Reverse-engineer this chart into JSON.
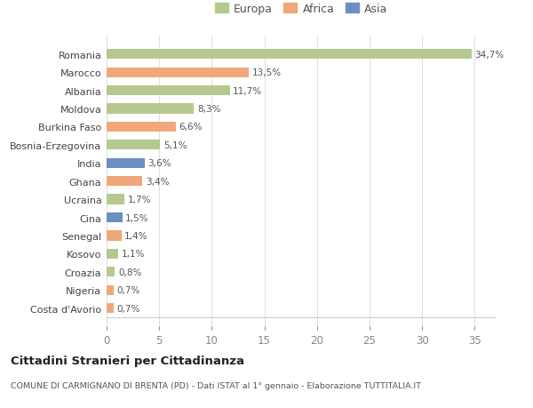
{
  "countries": [
    "Romania",
    "Marocco",
    "Albania",
    "Moldova",
    "Burkina Faso",
    "Bosnia-Erzegovina",
    "India",
    "Ghana",
    "Ucraina",
    "Cina",
    "Senegal",
    "Kosovo",
    "Croazia",
    "Nigeria",
    "Costa d'Avorio"
  ],
  "values": [
    34.7,
    13.5,
    11.7,
    8.3,
    6.6,
    5.1,
    3.6,
    3.4,
    1.7,
    1.5,
    1.4,
    1.1,
    0.8,
    0.7,
    0.7
  ],
  "labels": [
    "34,7%",
    "13,5%",
    "11,7%",
    "8,3%",
    "6,6%",
    "5,1%",
    "3,6%",
    "3,4%",
    "1,7%",
    "1,5%",
    "1,4%",
    "1,1%",
    "0,8%",
    "0,7%",
    "0,7%"
  ],
  "continents": [
    "Europa",
    "Africa",
    "Europa",
    "Europa",
    "Africa",
    "Europa",
    "Asia",
    "Africa",
    "Europa",
    "Asia",
    "Africa",
    "Europa",
    "Europa",
    "Africa",
    "Africa"
  ],
  "colors": {
    "Europa": "#b5c98e",
    "Africa": "#f0a87a",
    "Asia": "#6b8fc4"
  },
  "background_color": "#ffffff",
  "grid_color": "#e0e0e0",
  "title": "Cittadini Stranieri per Cittadinanza",
  "subtitle": "COMUNE DI CARMIGNANO DI BRENTA (PD) - Dati ISTAT al 1° gennaio - Elaborazione TUTTITALIA.IT",
  "xlim": [
    0,
    37
  ],
  "xticks": [
    0,
    5,
    10,
    15,
    20,
    25,
    30,
    35
  ]
}
